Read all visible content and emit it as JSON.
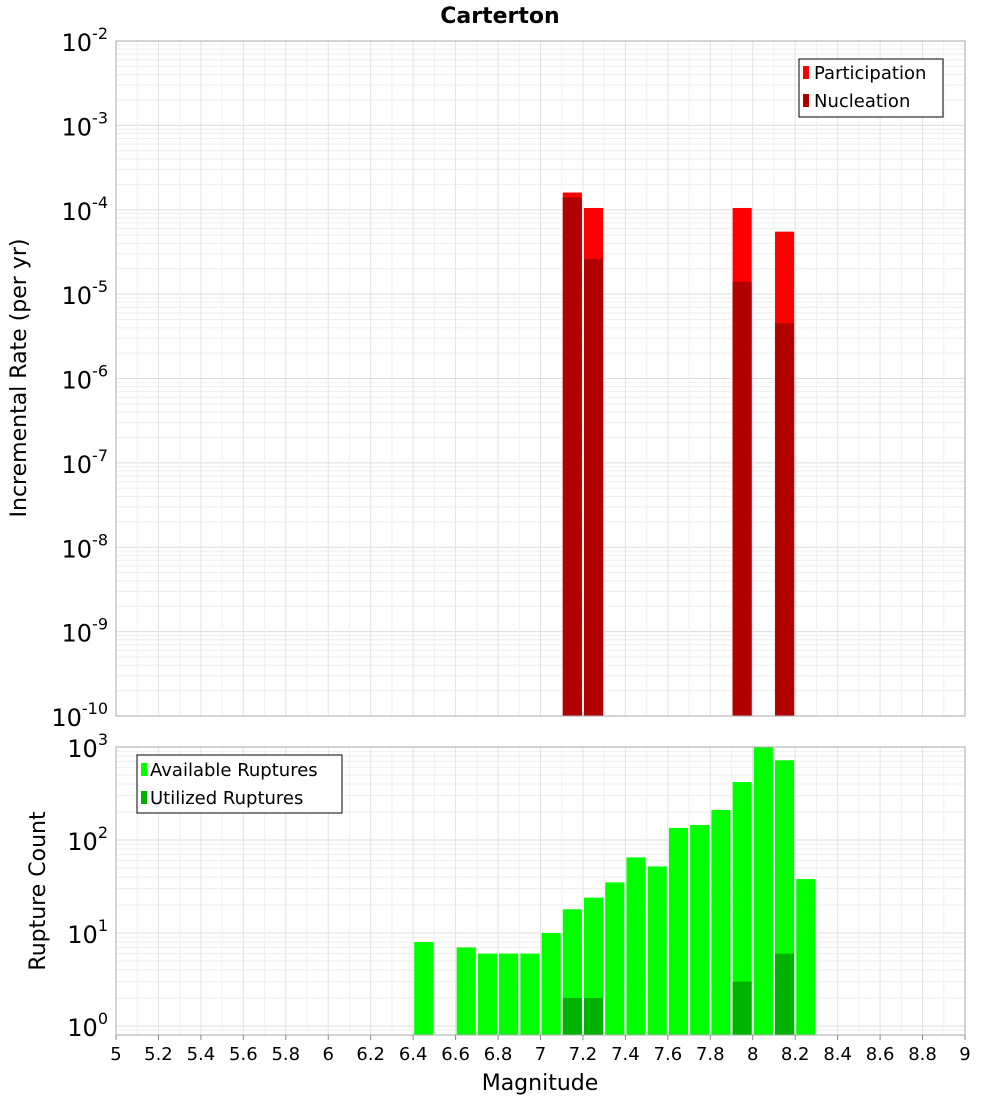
{
  "title": "Carterton",
  "chart_data": [
    {
      "type": "bar",
      "panel": "top",
      "title": "Carterton",
      "ylabel": "Incremental Rate (per yr)",
      "xlabel": "",
      "xlim": [
        5,
        9
      ],
      "ylim": [
        1e-10,
        0.01
      ],
      "yscale": "log",
      "grid": true,
      "legend_position": "top-right",
      "bar_width": 0.09,
      "y_ticks": [
        {
          "base": "10",
          "exp": "-2",
          "value": 0.01
        },
        {
          "base": "10",
          "exp": "-3",
          "value": 0.001
        },
        {
          "base": "10",
          "exp": "-4",
          "value": 0.0001
        },
        {
          "base": "10",
          "exp": "-5",
          "value": 1e-05
        },
        {
          "base": "10",
          "exp": "-6",
          "value": 1e-06
        },
        {
          "base": "10",
          "exp": "-7",
          "value": 1e-07
        },
        {
          "base": "10",
          "exp": "-8",
          "value": 1e-08
        },
        {
          "base": "10",
          "exp": "-9",
          "value": 1e-09
        },
        {
          "base": "10",
          "exp": "-10",
          "value": 1e-10
        }
      ],
      "series": [
        {
          "name": "Participation",
          "color": "#ff0000",
          "x": [
            7.15,
            7.25,
            7.95,
            8.15
          ],
          "values": [
            0.00016,
            0.000105,
            0.000105,
            5.5e-05
          ]
        },
        {
          "name": "Nucleation",
          "color": "#b20000",
          "x": [
            7.15,
            7.25,
            7.95,
            8.15
          ],
          "values": [
            0.00014,
            2.6e-05,
            1.4e-05,
            4.5e-06
          ]
        }
      ]
    },
    {
      "type": "bar",
      "panel": "bottom",
      "ylabel": "Rupture Count",
      "xlabel": "Magnitude",
      "xlim": [
        5,
        9
      ],
      "ylim": [
        0.8,
        1000
      ],
      "yscale": "log",
      "grid": true,
      "legend_position": "top-left",
      "bar_width": 0.09,
      "x_ticks": [
        "5",
        "5.2",
        "5.4",
        "5.6",
        "5.8",
        "6",
        "6.2",
        "6.4",
        "6.6",
        "6.8",
        "7",
        "7.2",
        "7.4",
        "7.6",
        "7.8",
        "8",
        "8.2",
        "8.4",
        "8.6",
        "8.8",
        "9"
      ],
      "y_ticks": [
        {
          "base": "10",
          "exp": "3",
          "value": 1000
        },
        {
          "base": "10",
          "exp": "2",
          "value": 100
        },
        {
          "base": "10",
          "exp": "1",
          "value": 10
        },
        {
          "base": "10",
          "exp": "0",
          "value": 1
        }
      ],
      "series": [
        {
          "name": "Available Ruptures",
          "color": "#00ff00",
          "x": [
            6.45,
            6.65,
            6.75,
            6.85,
            6.95,
            7.05,
            7.15,
            7.25,
            7.35,
            7.45,
            7.55,
            7.65,
            7.75,
            7.85,
            7.95,
            8.05,
            8.15,
            8.25
          ],
          "values": [
            8,
            7,
            6,
            6,
            6,
            10,
            18,
            24,
            35,
            65,
            52,
            135,
            145,
            210,
            420,
            1000,
            720,
            38
          ]
        },
        {
          "name": "Utilized Ruptures",
          "color": "#00b200",
          "x": [
            7.15,
            7.25,
            7.95,
            8.15
          ],
          "values": [
            2,
            2,
            3,
            6
          ]
        }
      ]
    }
  ]
}
